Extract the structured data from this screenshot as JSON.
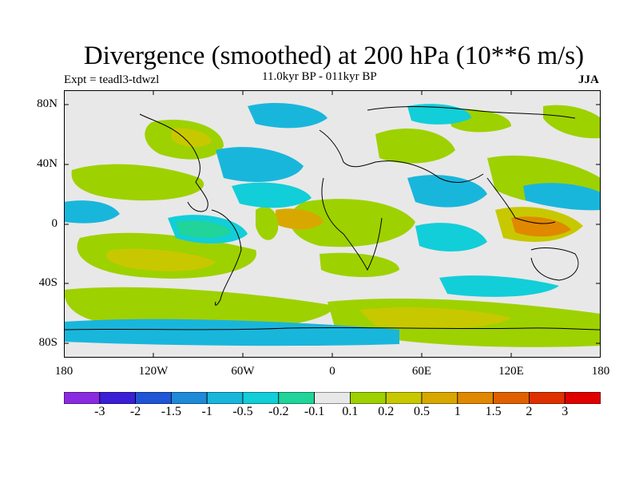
{
  "plot": {
    "title": "Divergence (smoothed) at 200 hPa (10**6 m/s)",
    "experiment": "Expt = teadl3-tdwzl",
    "period": "11.0kyr BP - 011kyr BP",
    "season": "JJA",
    "lat_ticks": [
      "80N",
      "40N",
      "0",
      "40S",
      "80S"
    ],
    "lon_ticks": [
      "180",
      "120W",
      "60W",
      "0",
      "60E",
      "120E",
      "180"
    ]
  },
  "colorbar": {
    "colors": [
      "#8a2be2",
      "#3a1fd6",
      "#1f55d6",
      "#1e8ad8",
      "#19b6dc",
      "#12ced8",
      "#20d49a",
      "#e8e8e8",
      "#9ed100",
      "#c8c800",
      "#d8a800",
      "#e08800",
      "#e06000",
      "#e03000",
      "#e00000"
    ],
    "labels": [
      "-3",
      "-2",
      "-1.5",
      "-1",
      "-0.5",
      "-0.2",
      "-0.1",
      "0.1",
      "0.2",
      "0.5",
      "1",
      "1.5",
      "2",
      "3"
    ]
  },
  "map_style": {
    "background": "#e8e8e8",
    "positive_light": "#9ed100",
    "positive_mid": "#c8c800",
    "positive_strong": "#d8a800",
    "positive_high": "#e08800",
    "negative_light": "#20d49a",
    "negative_mid": "#12ced8",
    "negative_strong": "#19b6dc",
    "coast": "#000000"
  }
}
